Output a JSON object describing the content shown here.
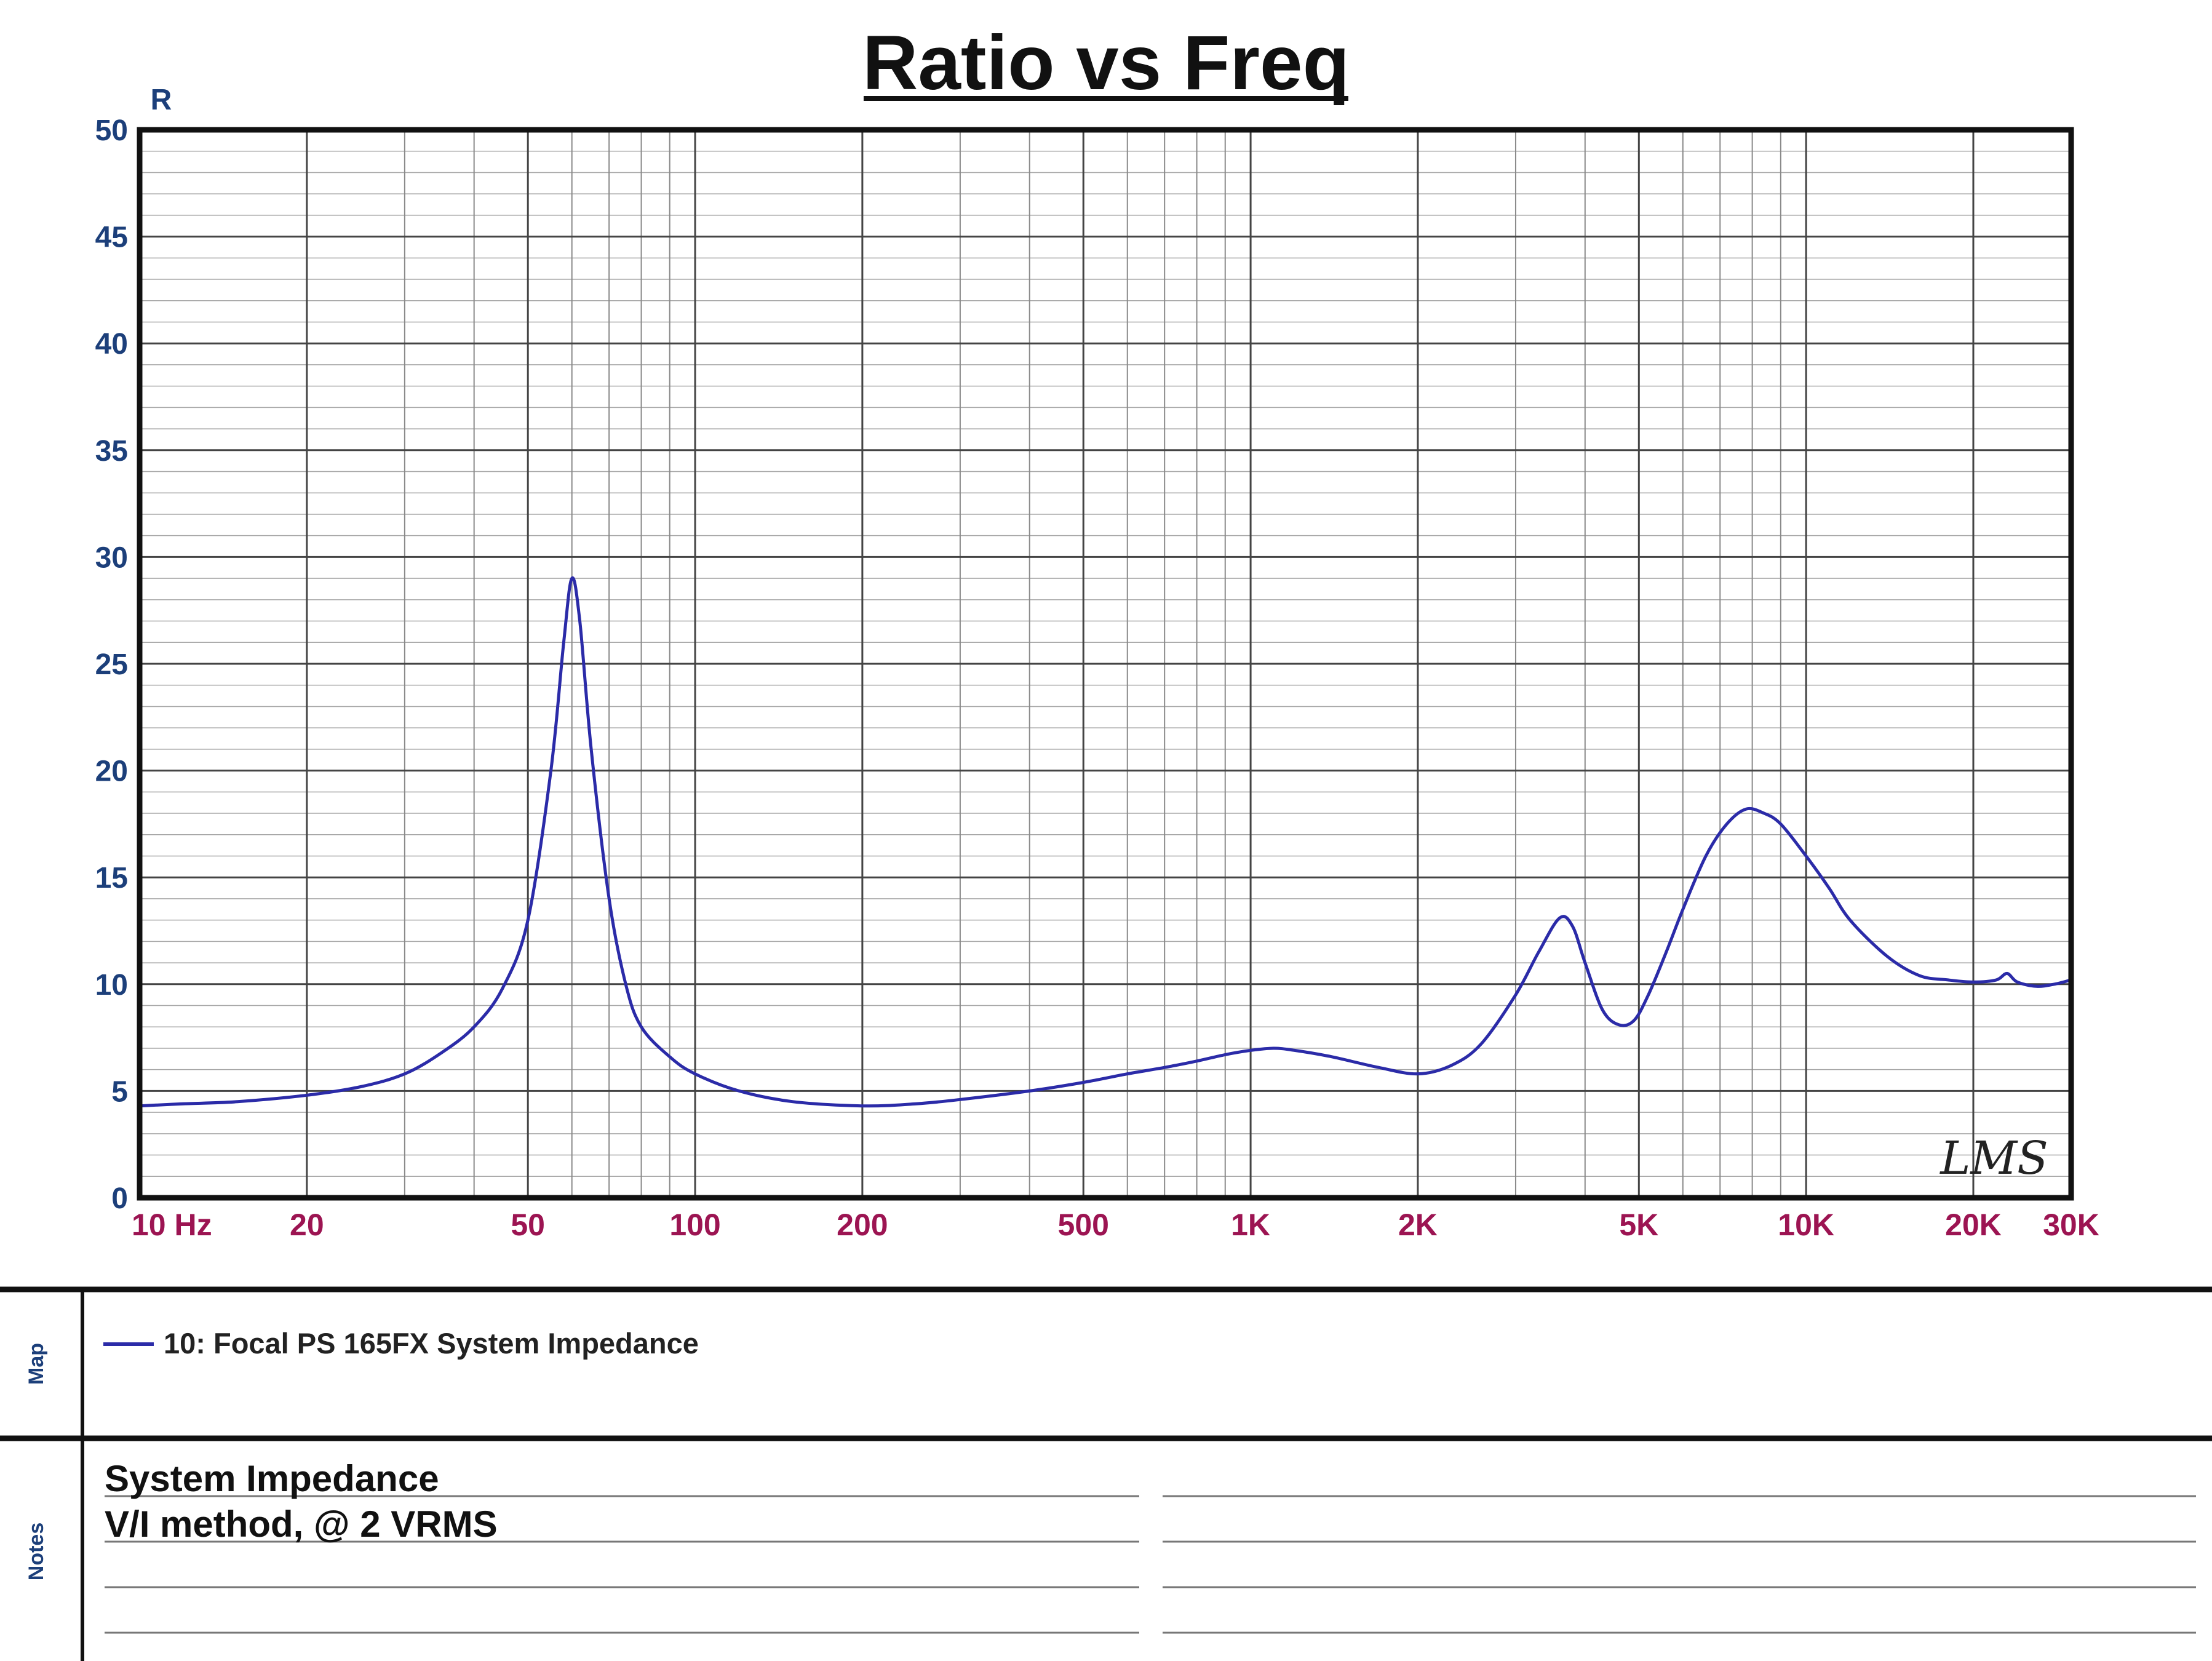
{
  "chart_data": {
    "type": "line",
    "title": "Ratio vs Freq",
    "ylabel": "R",
    "x_scale": "log",
    "xlim": [
      10,
      30000
    ],
    "ylim": [
      0,
      50
    ],
    "grid": true,
    "xtick_labels": [
      {
        "value": 10,
        "label": "10 Hz"
      },
      {
        "value": 20,
        "label": "20"
      },
      {
        "value": 50,
        "label": "50"
      },
      {
        "value": 100,
        "label": "100"
      },
      {
        "value": 200,
        "label": "200"
      },
      {
        "value": 500,
        "label": "500"
      },
      {
        "value": 1000,
        "label": "1K"
      },
      {
        "value": 2000,
        "label": "2K"
      },
      {
        "value": 5000,
        "label": "5K"
      },
      {
        "value": 10000,
        "label": "10K"
      },
      {
        "value": 20000,
        "label": "20K"
      },
      {
        "value": 30000,
        "label": "30K"
      }
    ],
    "ytick_labels": [
      "0",
      "5",
      "10",
      "15",
      "20",
      "25",
      "30",
      "35",
      "40",
      "45",
      "50"
    ],
    "ytick_values": [
      0,
      5,
      10,
      15,
      20,
      25,
      30,
      35,
      40,
      45,
      50
    ],
    "series": [
      {
        "name": "10: Focal PS 165FX System Impedance",
        "color": "#2b2ba8",
        "x": [
          10,
          12,
          15,
          20,
          25,
          30,
          35,
          40,
          45,
          50,
          55,
          58,
          60,
          62,
          65,
          70,
          75,
          80,
          90,
          100,
          120,
          150,
          200,
          250,
          300,
          400,
          500,
          600,
          700,
          800,
          900,
          1000,
          1100,
          1200,
          1400,
          1700,
          2000,
          2300,
          2600,
          3000,
          3300,
          3600,
          3800,
          4000,
          4300,
          4600,
          4900,
          5200,
          5600,
          6000,
          6600,
          7200,
          7800,
          8400,
          9000,
          10000,
          11000,
          12000,
          14000,
          16000,
          18000,
          20000,
          22000,
          23000,
          24000,
          26000,
          28000,
          30000
        ],
        "y": [
          4.3,
          4.4,
          4.5,
          4.8,
          5.2,
          5.8,
          6.8,
          8.0,
          9.8,
          13.0,
          20.0,
          26.0,
          29.0,
          27.0,
          21.0,
          14.0,
          10.0,
          8.0,
          6.6,
          5.8,
          5.0,
          4.5,
          4.3,
          4.4,
          4.6,
          5.0,
          5.4,
          5.8,
          6.1,
          6.4,
          6.7,
          6.9,
          7.0,
          6.9,
          6.6,
          6.1,
          5.8,
          6.2,
          7.2,
          9.5,
          11.5,
          13.1,
          12.7,
          11.0,
          8.8,
          8.1,
          8.3,
          9.5,
          11.5,
          13.5,
          16.0,
          17.5,
          18.2,
          18.0,
          17.5,
          16.0,
          14.5,
          13.0,
          11.3,
          10.4,
          10.2,
          10.1,
          10.2,
          10.5,
          10.1,
          9.9,
          10.0,
          10.2
        ]
      }
    ]
  },
  "logo": "LMS",
  "map": {
    "label": "Map",
    "entry": "10: Focal PS 165FX System Impedance"
  },
  "notes": {
    "label": "Notes",
    "line1": "System Impedance",
    "line2": "V/I method, @ 2 VRMS"
  }
}
